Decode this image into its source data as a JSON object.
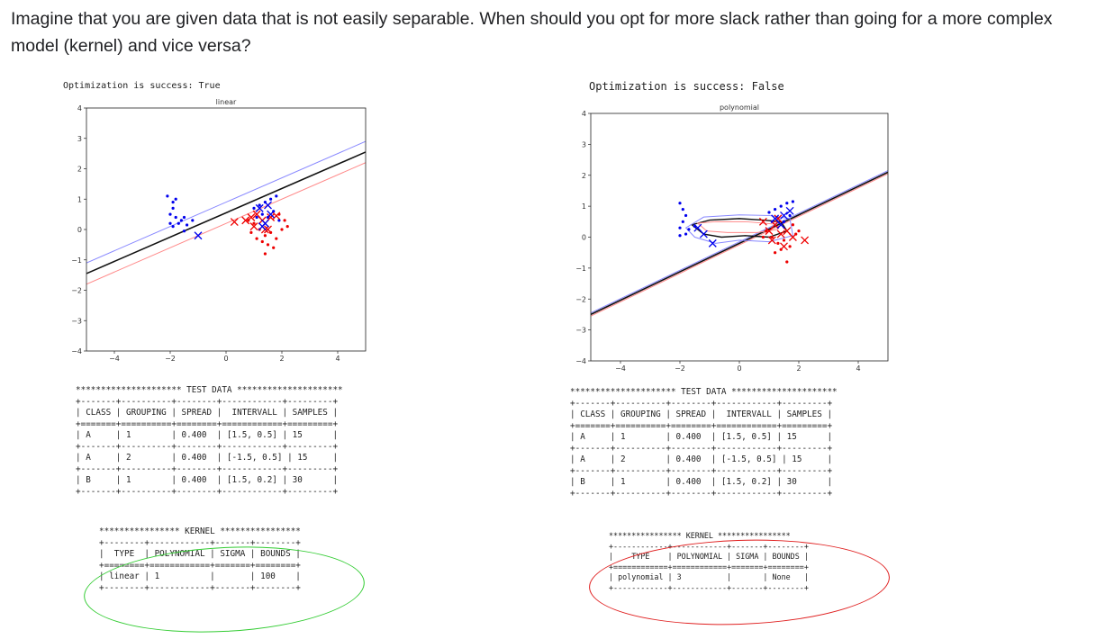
{
  "question": "Imagine that you are given data that is not easily separable. When should you opt for more slack rather than going for a more complex model (kernel) and vice versa?",
  "colors": {
    "class_a": "#0000ee",
    "class_b": "#ee0000",
    "decision": "#111111",
    "margin_a": "#8888ff",
    "margin_b": "#ff8888",
    "ellipse_left": "#33cc33",
    "ellipse_right": "#e02020"
  },
  "left": {
    "optimization_text": "Optimization is success: True",
    "chart_data": {
      "type": "scatter",
      "title": "linear",
      "xlim": [
        -5,
        5
      ],
      "ylim": [
        -4,
        4
      ],
      "xticks": [
        -4,
        -2,
        0,
        2,
        4
      ],
      "yticks": [
        4,
        3,
        2,
        1,
        0,
        -1,
        -2,
        -3,
        -4
      ],
      "lines": [
        {
          "name": "decision",
          "x": [
            -5,
            5
          ],
          "y": [
            -1.45,
            2.55
          ]
        },
        {
          "name": "margin_upper",
          "x": [
            -5,
            5
          ],
          "y": [
            -1.1,
            2.9
          ]
        },
        {
          "name": "margin_lower",
          "x": [
            -5,
            5
          ],
          "y": [
            -1.8,
            2.2
          ]
        }
      ],
      "points_a": [
        [
          -2.1,
          1.1
        ],
        [
          -1.9,
          0.9
        ],
        [
          -1.8,
          1.0
        ],
        [
          -1.9,
          0.7
        ],
        [
          -2.0,
          0.5
        ],
        [
          -1.8,
          0.4
        ],
        [
          -1.6,
          0.3
        ],
        [
          -1.5,
          0.4
        ],
        [
          -1.7,
          0.2
        ],
        [
          -1.9,
          0.1
        ],
        [
          -2.0,
          0.2
        ],
        [
          -1.4,
          0.15
        ],
        [
          -1.2,
          0.3
        ],
        [
          -1.5,
          -0.05
        ],
        [
          1.0,
          0.7
        ],
        [
          1.2,
          0.8
        ],
        [
          1.4,
          0.9
        ],
        [
          1.6,
          1.0
        ],
        [
          1.8,
          1.1
        ],
        [
          1.3,
          0.5
        ],
        [
          1.7,
          0.6
        ],
        [
          1.9,
          0.3
        ],
        [
          1.5,
          0.4
        ],
        [
          1.1,
          0.4
        ]
      ],
      "points_b": [
        [
          1.0,
          0.2
        ],
        [
          1.2,
          0.0
        ],
        [
          1.4,
          -0.2
        ],
        [
          1.6,
          -0.1
        ],
        [
          1.8,
          -0.3
        ],
        [
          2.0,
          0.0
        ],
        [
          1.5,
          -0.5
        ],
        [
          1.3,
          -0.4
        ],
        [
          0.9,
          -0.1
        ],
        [
          1.7,
          -0.6
        ],
        [
          1.4,
          -0.8
        ],
        [
          2.2,
          0.1
        ],
        [
          1.1,
          -0.3
        ],
        [
          0.8,
          0.3
        ],
        [
          1.9,
          0.5
        ],
        [
          2.1,
          0.3
        ]
      ],
      "x_a": [
        [
          -1.0,
          -0.2
        ],
        [
          1.2,
          0.7
        ],
        [
          1.5,
          0.8
        ],
        [
          1.6,
          0.5
        ],
        [
          1.4,
          0.2
        ],
        [
          1.3,
          0.1
        ]
      ],
      "x_b": [
        [
          0.3,
          0.25
        ],
        [
          0.7,
          0.3
        ],
        [
          1.0,
          0.1
        ],
        [
          1.3,
          0.3
        ],
        [
          1.6,
          0.4
        ],
        [
          1.8,
          0.45
        ],
        [
          1.5,
          0.0
        ],
        [
          0.9,
          0.4
        ],
        [
          1.1,
          0.5
        ],
        [
          1.4,
          0.0
        ]
      ]
    },
    "test_table": "********************* TEST DATA *********************\n+-------+----------+--------+------------+---------+\n| CLASS | GROUPING | SPREAD |  INTERVALL | SAMPLES |\n+=======+==========+========+============+=========+\n| A     | 1        | 0.400  | [1.5, 0.5] | 15      |\n+-------+----------+--------+------------+---------+\n| A     | 2        | 0.400  | [-1.5, 0.5] | 15     |\n+-------+----------+--------+------------+---------+\n| B     | 1        | 0.400  | [1.5, 0.2] | 30      |\n+-------+----------+--------+------------+---------+",
    "kernel_table": "**************** KERNEL ****************\n+--------+------------+-------+--------+\n|  TYPE  | POLYNOMIAL | SIGMA | BOUNDS |\n+========+============+=======+========+\n| linear | 1          |       | 100    |\n+--------+------------+-------+--------+"
  },
  "right": {
    "optimization_text": "Optimization is success: False",
    "chart_data": {
      "type": "scatter",
      "title": "polynomial",
      "xlim": [
        -5,
        5
      ],
      "ylim": [
        -4,
        4
      ],
      "xticks": [
        -4,
        -2,
        0,
        2,
        4
      ],
      "yticks": [
        4,
        3,
        2,
        1,
        0,
        -1,
        -2,
        -3,
        -4
      ],
      "lines": [
        {
          "name": "decision",
          "x": [
            -5,
            5
          ],
          "y": [
            -2.5,
            2.1
          ]
        },
        {
          "name": "margin_upper",
          "x": [
            -5,
            5
          ],
          "y": [
            -2.45,
            2.15
          ]
        },
        {
          "name": "margin_lower",
          "x": [
            -5,
            5
          ],
          "y": [
            -2.55,
            2.05
          ]
        }
      ],
      "points_a": [
        [
          -2.0,
          1.1
        ],
        [
          -1.9,
          0.9
        ],
        [
          -1.8,
          0.7
        ],
        [
          -1.9,
          0.5
        ],
        [
          -2.0,
          0.3
        ],
        [
          -1.7,
          0.25
        ],
        [
          -1.5,
          0.35
        ],
        [
          -1.8,
          0.1
        ],
        [
          -2.0,
          0.05
        ],
        [
          1.0,
          0.8
        ],
        [
          1.2,
          0.9
        ],
        [
          1.4,
          1.0
        ],
        [
          1.6,
          1.1
        ],
        [
          1.8,
          1.15
        ],
        [
          1.3,
          0.6
        ],
        [
          1.5,
          0.5
        ],
        [
          1.7,
          0.7
        ],
        [
          1.1,
          0.5
        ]
      ],
      "points_b": [
        [
          0.9,
          0.2
        ],
        [
          1.1,
          0.0
        ],
        [
          1.3,
          -0.2
        ],
        [
          1.5,
          -0.1
        ],
        [
          1.7,
          -0.3
        ],
        [
          1.9,
          0.1
        ],
        [
          1.4,
          -0.4
        ],
        [
          1.2,
          -0.5
        ],
        [
          1.6,
          -0.8
        ],
        [
          2.0,
          0.2
        ],
        [
          0.8,
          0.0
        ],
        [
          1.8,
          0.4
        ]
      ],
      "x_a": [
        [
          -1.4,
          0.3
        ],
        [
          -1.2,
          0.1
        ],
        [
          -0.9,
          -0.2
        ],
        [
          1.2,
          0.6
        ],
        [
          1.5,
          0.7
        ],
        [
          1.7,
          0.85
        ],
        [
          1.4,
          0.4
        ]
      ],
      "x_b": [
        [
          0.8,
          0.5
        ],
        [
          1.0,
          0.2
        ],
        [
          1.2,
          0.4
        ],
        [
          1.4,
          0.1
        ],
        [
          1.6,
          0.2
        ],
        [
          1.8,
          0.0
        ],
        [
          2.2,
          -0.1
        ],
        [
          1.1,
          -0.1
        ],
        [
          1.5,
          -0.3
        ],
        [
          1.3,
          0.6
        ]
      ]
    },
    "test_table": "********************* TEST DATA *********************\n+-------+----------+--------+------------+---------+\n| CLASS | GROUPING | SPREAD |  INTERVALL | SAMPLES |\n+=======+==========+========+============+=========+\n| A     | 1        | 0.400  | [1.5, 0.5] | 15      |\n+-------+----------+--------+------------+---------+\n| A     | 2        | 0.400  | [-1.5, 0.5] | 15     |\n+-------+----------+--------+------------+---------+\n| B     | 1        | 0.400  | [1.5, 0.2] | 30      |\n+-------+----------+--------+------------+---------+",
    "kernel_table": "**************** KERNEL ****************\n+------------+------------+-------+--------+\n|    TYPE    | POLYNOMIAL | SIGMA | BOUNDS |\n+============+============+=======+========+\n| polynomial | 3          |       | None   |\n+------------+------------+-------+--------+"
  }
}
